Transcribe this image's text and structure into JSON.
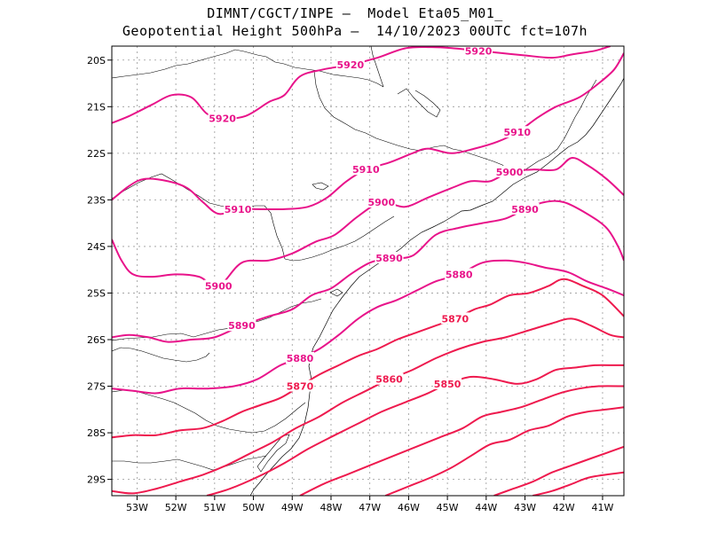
{
  "title": {
    "line1": "DIMNT/CGCT/INPE —  Model Eta05_M01_",
    "line2": "Geopotential Height 500hPa —  14/10/2023 00UTC fct=107h"
  },
  "axes": {
    "lat_labels": [
      "20S",
      "21S",
      "22S",
      "23S",
      "24S",
      "25S",
      "26S",
      "27S",
      "28S",
      "29S"
    ],
    "lon_labels": [
      "53W",
      "52W",
      "51W",
      "50W",
      "49W",
      "48W",
      "47W",
      "46W",
      "45W",
      "44W",
      "43W",
      "42W",
      "41W"
    ]
  },
  "colors": {
    "contour_magenta": "#e8138a",
    "contour_red": "#ee1a4e",
    "coast": "#000000",
    "grid": "#999999"
  },
  "chart_data": {
    "type": "contour",
    "variable": "Geopotential Height 500hPa",
    "lon_range": [
      -53.65,
      -40.45
    ],
    "lat_range": [
      -29.35,
      -19.7
    ],
    "grid": true,
    "contours": [
      {
        "level": 5920,
        "labels": [
          "5920",
          "5920",
          "5920"
        ],
        "points": [
          [
            -53.65,
            -21.35
          ],
          [
            -53.2,
            -21.2
          ],
          [
            -52.6,
            -20.95
          ],
          [
            -52.1,
            -20.75
          ],
          [
            -51.6,
            -20.8
          ],
          [
            -51.2,
            -21.15
          ],
          [
            -50.8,
            -21.25
          ],
          [
            -50.2,
            -21.2
          ],
          [
            -49.6,
            -20.9
          ],
          [
            -49.2,
            -20.75
          ],
          [
            -48.8,
            -20.35
          ],
          [
            -48.2,
            -20.2
          ],
          [
            -47.5,
            -20.1
          ],
          [
            -46.8,
            -19.95
          ],
          [
            -46.1,
            -19.75
          ],
          [
            -45.4,
            -19.72
          ],
          [
            -44.8,
            -19.75
          ],
          [
            -44.2,
            -19.8
          ],
          [
            -43.6,
            -19.85
          ],
          [
            -43.0,
            -19.9
          ],
          [
            -42.3,
            -19.95
          ],
          [
            -41.8,
            -19.88
          ],
          [
            -41.2,
            -19.8
          ],
          [
            -40.8,
            -19.7
          ]
        ]
      },
      {
        "level": 5910,
        "labels": [
          "5910",
          "5910",
          "5910"
        ],
        "points": [
          [
            -53.65,
            -23.0
          ],
          [
            -53.2,
            -22.7
          ],
          [
            -52.8,
            -22.55
          ],
          [
            -52.2,
            -22.6
          ],
          [
            -51.7,
            -22.75
          ],
          [
            -51.3,
            -23.05
          ],
          [
            -50.9,
            -23.3
          ],
          [
            -50.4,
            -23.2
          ],
          [
            -49.9,
            -23.2
          ],
          [
            -49.2,
            -23.2
          ],
          [
            -48.6,
            -23.15
          ],
          [
            -48.1,
            -22.95
          ],
          [
            -47.6,
            -22.6
          ],
          [
            -47.1,
            -22.35
          ],
          [
            -46.5,
            -22.2
          ],
          [
            -45.9,
            -22.0
          ],
          [
            -45.5,
            -21.9
          ],
          [
            -44.9,
            -22.0
          ],
          [
            -44.3,
            -21.9
          ],
          [
            -43.7,
            -21.75
          ],
          [
            -43.2,
            -21.55
          ],
          [
            -42.7,
            -21.25
          ],
          [
            -42.2,
            -21.0
          ],
          [
            -41.6,
            -20.8
          ],
          [
            -41.1,
            -20.5
          ],
          [
            -40.7,
            -20.2
          ],
          [
            -40.45,
            -19.85
          ]
        ]
      },
      {
        "level": 5900,
        "labels": [
          "5900",
          "5900",
          "5900"
        ],
        "points": [
          [
            -53.65,
            -23.85
          ],
          [
            -53.4,
            -24.3
          ],
          [
            -53.1,
            -24.6
          ],
          [
            -52.6,
            -24.65
          ],
          [
            -52.0,
            -24.6
          ],
          [
            -51.4,
            -24.65
          ],
          [
            -50.9,
            -24.85
          ],
          [
            -50.3,
            -24.35
          ],
          [
            -49.6,
            -24.3
          ],
          [
            -49.0,
            -24.15
          ],
          [
            -48.4,
            -23.9
          ],
          [
            -47.9,
            -23.75
          ],
          [
            -47.3,
            -23.35
          ],
          [
            -46.7,
            -23.05
          ],
          [
            -46.1,
            -23.15
          ],
          [
            -45.5,
            -22.95
          ],
          [
            -44.9,
            -22.75
          ],
          [
            -44.4,
            -22.6
          ],
          [
            -43.9,
            -22.6
          ],
          [
            -43.4,
            -22.4
          ],
          [
            -42.8,
            -22.35
          ],
          [
            -42.2,
            -22.35
          ],
          [
            -41.8,
            -22.1
          ],
          [
            -41.4,
            -22.25
          ],
          [
            -40.9,
            -22.55
          ],
          [
            -40.45,
            -22.9
          ]
        ]
      },
      {
        "level": 5890,
        "labels": [
          "5890",
          "5890",
          "5890"
        ],
        "points": [
          [
            -53.65,
            -25.95
          ],
          [
            -53.2,
            -25.9
          ],
          [
            -52.7,
            -25.95
          ],
          [
            -52.2,
            -26.05
          ],
          [
            -51.6,
            -26.0
          ],
          [
            -51.0,
            -25.95
          ],
          [
            -50.3,
            -25.7
          ],
          [
            -49.6,
            -25.5
          ],
          [
            -49.0,
            -25.35
          ],
          [
            -48.5,
            -25.05
          ],
          [
            -48.0,
            -24.9
          ],
          [
            -47.5,
            -24.6
          ],
          [
            -47.0,
            -24.35
          ],
          [
            -46.5,
            -24.25
          ],
          [
            -45.9,
            -24.2
          ],
          [
            -45.3,
            -23.75
          ],
          [
            -44.7,
            -23.6
          ],
          [
            -44.1,
            -23.5
          ],
          [
            -43.5,
            -23.4
          ],
          [
            -43.0,
            -23.2
          ],
          [
            -42.5,
            -23.05
          ],
          [
            -42.0,
            -23.05
          ],
          [
            -41.4,
            -23.3
          ],
          [
            -40.9,
            -23.6
          ],
          [
            -40.6,
            -24.0
          ],
          [
            -40.45,
            -24.3
          ]
        ]
      },
      {
        "level": 5880,
        "labels": [
          "5880",
          "5880"
        ],
        "points": [
          [
            -53.65,
            -27.05
          ],
          [
            -53.1,
            -27.1
          ],
          [
            -52.5,
            -27.15
          ],
          [
            -51.9,
            -27.05
          ],
          [
            -51.2,
            -27.05
          ],
          [
            -50.5,
            -27.0
          ],
          [
            -49.9,
            -26.85
          ],
          [
            -49.3,
            -26.55
          ],
          [
            -48.8,
            -26.4
          ],
          [
            -48.3,
            -26.2
          ],
          [
            -47.8,
            -25.9
          ],
          [
            -47.3,
            -25.55
          ],
          [
            -46.8,
            -25.3
          ],
          [
            -46.3,
            -25.15
          ],
          [
            -45.8,
            -24.95
          ],
          [
            -45.3,
            -24.75
          ],
          [
            -44.7,
            -24.6
          ],
          [
            -44.1,
            -24.35
          ],
          [
            -43.5,
            -24.3
          ],
          [
            -43.0,
            -24.35
          ],
          [
            -42.5,
            -24.45
          ],
          [
            -41.9,
            -24.55
          ],
          [
            -41.4,
            -24.75
          ],
          [
            -40.9,
            -24.9
          ],
          [
            -40.45,
            -25.05
          ]
        ]
      },
      {
        "level": 5870,
        "labels": [
          "5870",
          "5870"
        ],
        "points": [
          [
            -53.65,
            -28.1
          ],
          [
            -53.1,
            -28.05
          ],
          [
            -52.5,
            -28.05
          ],
          [
            -51.9,
            -27.95
          ],
          [
            -51.3,
            -27.9
          ],
          [
            -50.8,
            -27.75
          ],
          [
            -50.3,
            -27.55
          ],
          [
            -49.8,
            -27.4
          ],
          [
            -49.3,
            -27.25
          ],
          [
            -48.8,
            -27.0
          ],
          [
            -48.3,
            -26.75
          ],
          [
            -47.8,
            -26.55
          ],
          [
            -47.3,
            -26.35
          ],
          [
            -46.8,
            -26.2
          ],
          [
            -46.3,
            -26.0
          ],
          [
            -45.8,
            -25.85
          ],
          [
            -45.3,
            -25.7
          ],
          [
            -44.8,
            -25.55
          ],
          [
            -44.3,
            -25.35
          ],
          [
            -43.9,
            -25.25
          ],
          [
            -43.4,
            -25.05
          ],
          [
            -42.9,
            -25.0
          ],
          [
            -42.4,
            -24.85
          ],
          [
            -42.0,
            -24.7
          ],
          [
            -41.5,
            -24.85
          ],
          [
            -41.0,
            -25.05
          ],
          [
            -40.45,
            -25.5
          ]
        ]
      },
      {
        "level": 5860,
        "labels": [
          "5860"
        ],
        "points": [
          [
            -53.65,
            -29.25
          ],
          [
            -53.1,
            -29.3
          ],
          [
            -52.5,
            -29.2
          ],
          [
            -51.9,
            -29.05
          ],
          [
            -51.3,
            -28.9
          ],
          [
            -50.7,
            -28.7
          ],
          [
            -50.1,
            -28.45
          ],
          [
            -49.5,
            -28.2
          ],
          [
            -48.9,
            -27.9
          ],
          [
            -48.3,
            -27.65
          ],
          [
            -47.7,
            -27.35
          ],
          [
            -47.1,
            -27.1
          ],
          [
            -46.5,
            -26.85
          ],
          [
            -45.9,
            -26.65
          ],
          [
            -45.3,
            -26.4
          ],
          [
            -44.7,
            -26.2
          ],
          [
            -44.1,
            -26.05
          ],
          [
            -43.5,
            -25.95
          ],
          [
            -42.9,
            -25.8
          ],
          [
            -42.3,
            -25.65
          ],
          [
            -41.8,
            -25.55
          ],
          [
            -41.3,
            -25.7
          ],
          [
            -40.8,
            -25.9
          ],
          [
            -40.45,
            -25.95
          ]
        ]
      },
      {
        "level": 5850,
        "labels": [
          "5850"
        ],
        "points": [
          [
            -51.2,
            -29.35
          ],
          [
            -50.6,
            -29.2
          ],
          [
            -49.9,
            -28.95
          ],
          [
            -49.2,
            -28.65
          ],
          [
            -48.6,
            -28.35
          ],
          [
            -47.9,
            -28.05
          ],
          [
            -47.3,
            -27.8
          ],
          [
            -46.7,
            -27.55
          ],
          [
            -46.1,
            -27.35
          ],
          [
            -45.5,
            -27.15
          ],
          [
            -45.0,
            -26.95
          ],
          [
            -44.4,
            -26.8
          ],
          [
            -43.8,
            -26.85
          ],
          [
            -43.2,
            -26.95
          ],
          [
            -42.7,
            -26.85
          ],
          [
            -42.2,
            -26.65
          ],
          [
            -41.7,
            -26.6
          ],
          [
            -41.2,
            -26.55
          ],
          [
            -40.7,
            -26.55
          ],
          [
            -40.45,
            -26.55
          ]
        ]
      },
      {
        "level": 5840,
        "labels": [],
        "points": [
          [
            -48.8,
            -29.35
          ],
          [
            -48.2,
            -29.1
          ],
          [
            -47.6,
            -28.9
          ],
          [
            -47.0,
            -28.7
          ],
          [
            -46.4,
            -28.5
          ],
          [
            -45.8,
            -28.3
          ],
          [
            -45.2,
            -28.1
          ],
          [
            -44.6,
            -27.9
          ],
          [
            -44.1,
            -27.65
          ],
          [
            -43.6,
            -27.55
          ],
          [
            -43.1,
            -27.45
          ],
          [
            -42.6,
            -27.3
          ],
          [
            -42.1,
            -27.15
          ],
          [
            -41.6,
            -27.05
          ],
          [
            -41.1,
            -27.0
          ],
          [
            -40.45,
            -27.0
          ]
        ]
      },
      {
        "level": 5830,
        "labels": [],
        "points": [
          [
            -46.6,
            -29.35
          ],
          [
            -46.0,
            -29.15
          ],
          [
            -45.4,
            -28.95
          ],
          [
            -44.9,
            -28.75
          ],
          [
            -44.4,
            -28.5
          ],
          [
            -43.9,
            -28.25
          ],
          [
            -43.4,
            -28.15
          ],
          [
            -42.9,
            -27.95
          ],
          [
            -42.4,
            -27.85
          ],
          [
            -41.9,
            -27.65
          ],
          [
            -41.4,
            -27.55
          ],
          [
            -40.9,
            -27.5
          ],
          [
            -40.45,
            -27.45
          ]
        ]
      },
      {
        "level": 5820,
        "labels": [],
        "points": [
          [
            -43.8,
            -29.35
          ],
          [
            -43.3,
            -29.2
          ],
          [
            -42.8,
            -29.05
          ],
          [
            -42.3,
            -28.85
          ],
          [
            -41.8,
            -28.7
          ],
          [
            -41.3,
            -28.55
          ],
          [
            -40.45,
            -28.3
          ]
        ]
      },
      {
        "level": 5810,
        "labels": [],
        "points": [
          [
            -42.8,
            -29.35
          ],
          [
            -42.3,
            -29.25
          ],
          [
            -41.8,
            -29.1
          ],
          [
            -41.3,
            -28.95
          ],
          [
            -40.45,
            -28.85
          ]
        ]
      }
    ]
  }
}
